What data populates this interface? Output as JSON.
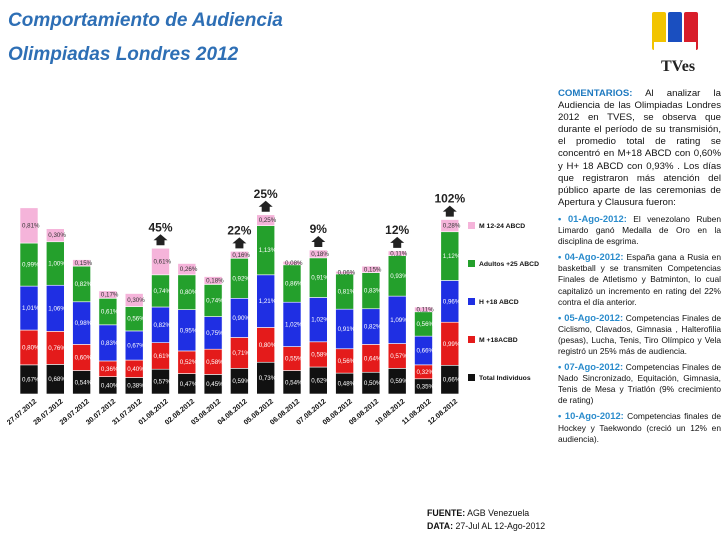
{
  "header": {
    "title_line1": "Comportamiento de Audiencia",
    "title_line2": "Olimpiadas Londres 2012",
    "logo_text": "TVes"
  },
  "colors": {
    "m1224": "#f5b4da",
    "adultos": "#24a02c",
    "h18": "#1f2fe3",
    "m18": "#e41b1b",
    "total": "#111111",
    "title": "#2e6fb5",
    "comment_head": "#1f7ac0"
  },
  "chart_data": {
    "type": "bar",
    "stacked": true,
    "categories": [
      "27.07.2012",
      "28.07.2012",
      "29.07.2012",
      "30.07.2012",
      "31.07.2012",
      "01.08.2012",
      "02.08.2012",
      "03.08.2012",
      "04.08.2012",
      "05.08.2012",
      "06.08.2012",
      "07.08.2012",
      "08.08.2012",
      "09.08.2012",
      "10.08.2012",
      "11.08.2012",
      "12.08.2012"
    ],
    "series": [
      {
        "name": "Total Individuos",
        "color": "#111111",
        "values": [
          0.67,
          0.68,
          0.54,
          0.4,
          0.38,
          0.57,
          0.47,
          0.45,
          0.59,
          0.73,
          0.54,
          0.62,
          0.48,
          0.5,
          0.59,
          0.35,
          0.66
        ],
        "labels": [
          "0,67%",
          "0,68%",
          "0,54%",
          "0,40%",
          "0,38%",
          "0,57%",
          "0,47%",
          "0,45%",
          "0,59%",
          "0,73%",
          "0,54%",
          "0,62%",
          "0,48%",
          "0,50%",
          "0,59%",
          "0,35%",
          "0,66%"
        ]
      },
      {
        "name": "M +18ACBD",
        "color": "#e41b1b",
        "values": [
          0.8,
          0.76,
          0.6,
          0.36,
          0.4,
          0.61,
          0.52,
          0.58,
          0.71,
          0.8,
          0.55,
          0.58,
          0.56,
          0.64,
          0.57,
          0.32,
          0.99
        ],
        "labels": [
          "0,80%",
          "0,76%",
          "0,60%",
          "0,36%",
          "0,40%",
          "0,61%",
          "0,52%",
          "0,58%",
          "0,71%",
          "0,80%",
          "0,55%",
          "0,58%",
          "0,56%",
          "0,64%",
          "0,57%",
          "0,32%",
          "0,99%"
        ]
      },
      {
        "name": "H +18 ABCD",
        "color": "#1f2fe3",
        "values": [
          1.01,
          1.06,
          0.98,
          0.83,
          0.67,
          0.82,
          0.95,
          0.75,
          0.9,
          1.21,
          1.02,
          1.02,
          0.91,
          0.82,
          1.09,
          0.66,
          0.96
        ],
        "labels": [
          "1,01%",
          "1,06%",
          "0,98%",
          "0,83%",
          "0,67%",
          "0,82%",
          "0,95%",
          "0,75%",
          "0,90%",
          "1,21%",
          "1,02%",
          "1,02%",
          "0,91%",
          "0,82%",
          "1,09%",
          "0,66%",
          "0,96%"
        ]
      },
      {
        "name": "Adultos +25 ABCD",
        "color": "#24a02c",
        "values": [
          0.99,
          1.0,
          0.82,
          0.61,
          0.56,
          0.74,
          0.8,
          0.74,
          0.92,
          1.13,
          0.86,
          0.91,
          0.81,
          0.83,
          0.93,
          0.56,
          1.12
        ],
        "labels": [
          "0,99%",
          "1,00%",
          "0,82%",
          "0,61%",
          "0,56%",
          "0,74%",
          "0,80%",
          "0,74%",
          "0,92%",
          "1,13%",
          "0,86%",
          "0,91%",
          "0,81%",
          "0,83%",
          "0,93%",
          "0,56%",
          "1,12%"
        ]
      },
      {
        "name": "M 12-24 ABCD",
        "color": "#f5b4da",
        "values": [
          0.81,
          0.3,
          0.15,
          0.17,
          0.3,
          0.61,
          0.26,
          0.18,
          0.16,
          0.25,
          0.08,
          0.18,
          0.06,
          0.15,
          0.11,
          0.11,
          0.28
        ],
        "labels": [
          "0,81%",
          "0,30%",
          "0,15%",
          "0,17%",
          "0,30%",
          "0,61%",
          "0,26%",
          "0,18%",
          "0,16%",
          "0,25%",
          "0,08%",
          "0,18%",
          "0,06%",
          "0,15%",
          "0,11%",
          "0,11%",
          "0,28%"
        ]
      }
    ],
    "legend_order": [
      "M 12-24 ABCD",
      "Adultos +25 ABCD",
      "H +18 ABCD",
      "M +18ACBD",
      "Total Individuos"
    ],
    "legend_position": "right",
    "annotations": [
      {
        "category": "01.08.2012",
        "text": "45%"
      },
      {
        "category": "04.08.2012",
        "text": "22%"
      },
      {
        "category": "05.08.2012",
        "text": "25%"
      },
      {
        "category": "07.08.2012",
        "text": "9%"
      },
      {
        "category": "10.08.2012",
        "text": "12%"
      },
      {
        "category": "12.08.2012",
        "text": "102%"
      }
    ],
    "xlabel": "",
    "ylabel": "",
    "grid": false
  },
  "comments": {
    "head": "COMENTARIOS:",
    "intro": " Al analizar la Audiencia de las Olimpiadas Londres 2012 en TVES, se observa que durante el período de su transmisión, el promedio total de rating se concentró en M+18 ABCD con 0,60% y H+ 18 ABCD con 0,93% . Los días que registraron más atención del público aparte de las ceremonias de Apertura y Clausura fueron:",
    "notes": [
      {
        "date": "01-Ago-2012:",
        "text": " El venezolano Ruben Limardo ganó Medalla de Oro en la disciplina de esgrima."
      },
      {
        "date": "04-Ago-2012:",
        "text": " España gana a Rusia en basketball y se transmiten Competencias Finales de Atletismo y Batminton, lo cual capitalizó un incremento en rating del 22% contra el día anterior."
      },
      {
        "date": "05-Ago-2012:",
        "text": " Competencias Finales de Ciclismo, Clavados, Gimnasia , Halterofilia (pesas), Lucha, Tenis, Tiro Olímpico y Vela registró un 25% más de audiencia."
      },
      {
        "date": "07-Ago-2012:",
        "text": " Competencias Finales de Nado Sincronizado, Equitación, Gimnasia, Tenis de Mesa y Triatlón (9% crecimiento de rating)"
      },
      {
        "date": "10-Ago-2012:",
        "text": " Competencias finales de Hockey y Taekwondo (creció un 12% en audiencia)."
      }
    ]
  },
  "source": {
    "fuente_label": "FUENTE:",
    "fuente_value": " AGB Venezuela",
    "data_label": "DATA:",
    "data_value": " 27-Jul  AL  12-Ago-2012"
  }
}
